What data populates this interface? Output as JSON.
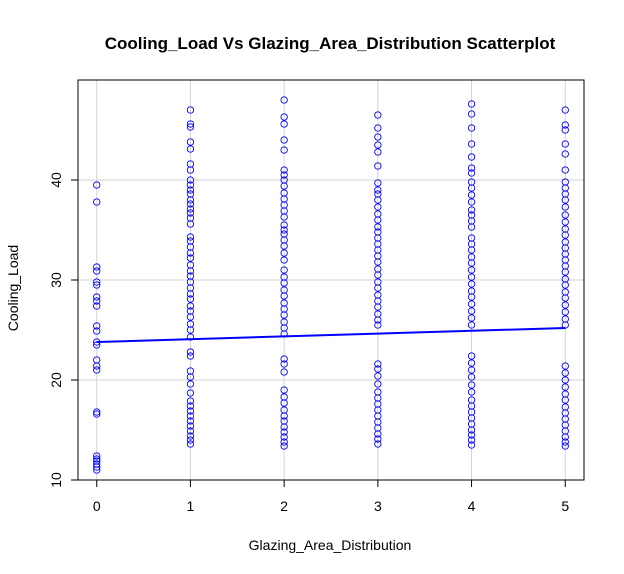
{
  "chart_data": {
    "type": "scatter",
    "title": "Cooling_Load Vs Glazing_Area_Distribution Scatterplot",
    "xlabel": "Glazing_Area_Distribution",
    "ylabel": "Cooling_Load",
    "xlim": [
      -0.2,
      5.2
    ],
    "ylim": [
      10.0,
      50.0
    ],
    "x_ticks": [
      0,
      1,
      2,
      3,
      4,
      5
    ],
    "y_ticks": [
      10,
      20,
      30,
      40
    ],
    "x_tick_labels": [
      "0",
      "1",
      "2",
      "3",
      "4",
      "5"
    ],
    "y_tick_labels": [
      "10",
      "20",
      "30",
      "40"
    ],
    "grid": true,
    "point_color": "#0000ff",
    "line_color": "#0000ff",
    "marker": "open-circle",
    "series": [
      {
        "points": [
          [
            0,
            39.5
          ],
          [
            0,
            37.8
          ],
          [
            0,
            31.3
          ],
          [
            0,
            30.9
          ],
          [
            0,
            29.8
          ],
          [
            0,
            29.5
          ],
          [
            0,
            28.3
          ],
          [
            0,
            27.9
          ],
          [
            0,
            27.4
          ],
          [
            0,
            25.4
          ],
          [
            0,
            24.9
          ],
          [
            0,
            23.8
          ],
          [
            0,
            23.5
          ],
          [
            0,
            22.0
          ],
          [
            0,
            21.4
          ],
          [
            0,
            21.0
          ],
          [
            0,
            16.8
          ],
          [
            0,
            16.6
          ],
          [
            0,
            12.4
          ],
          [
            0,
            12.1
          ],
          [
            0,
            11.9
          ],
          [
            0,
            11.6
          ],
          [
            0,
            11.3
          ],
          [
            0,
            11.0
          ],
          [
            1,
            47.0
          ],
          [
            1,
            45.6
          ],
          [
            1,
            45.3
          ],
          [
            1,
            43.8
          ],
          [
            1,
            43.1
          ],
          [
            1,
            41.6
          ],
          [
            1,
            41.0
          ],
          [
            1,
            40.0
          ],
          [
            1,
            39.5
          ],
          [
            1,
            39.0
          ],
          [
            1,
            38.6
          ],
          [
            1,
            38.0
          ],
          [
            1,
            37.6
          ],
          [
            1,
            37.1
          ],
          [
            1,
            36.7
          ],
          [
            1,
            36.2
          ],
          [
            1,
            35.6
          ],
          [
            1,
            34.3
          ],
          [
            1,
            33.9
          ],
          [
            1,
            33.3
          ],
          [
            1,
            32.7
          ],
          [
            1,
            32.2
          ],
          [
            1,
            31.5
          ],
          [
            1,
            30.9
          ],
          [
            1,
            30.4
          ],
          [
            1,
            29.8
          ],
          [
            1,
            29.2
          ],
          [
            1,
            28.6
          ],
          [
            1,
            28.1
          ],
          [
            1,
            27.4
          ],
          [
            1,
            26.9
          ],
          [
            1,
            26.3
          ],
          [
            1,
            25.6
          ],
          [
            1,
            25.0
          ],
          [
            1,
            24.3
          ],
          [
            1,
            22.8
          ],
          [
            1,
            22.4
          ],
          [
            1,
            20.9
          ],
          [
            1,
            20.3
          ],
          [
            1,
            19.6
          ],
          [
            1,
            18.7
          ],
          [
            1,
            17.9
          ],
          [
            1,
            17.4
          ],
          [
            1,
            16.9
          ],
          [
            1,
            16.4
          ],
          [
            1,
            15.9
          ],
          [
            1,
            15.4
          ],
          [
            1,
            14.9
          ],
          [
            1,
            14.4
          ],
          [
            1,
            14.0
          ],
          [
            1,
            13.6
          ],
          [
            2,
            48.0
          ],
          [
            2,
            46.3
          ],
          [
            2,
            45.6
          ],
          [
            2,
            44.0
          ],
          [
            2,
            43.0
          ],
          [
            2,
            41.0
          ],
          [
            2,
            40.5
          ],
          [
            2,
            40.0
          ],
          [
            2,
            39.4
          ],
          [
            2,
            38.7
          ],
          [
            2,
            38.1
          ],
          [
            2,
            37.5
          ],
          [
            2,
            36.9
          ],
          [
            2,
            36.3
          ],
          [
            2,
            35.5
          ],
          [
            2,
            35.0
          ],
          [
            2,
            34.6
          ],
          [
            2,
            34.0
          ],
          [
            2,
            33.4
          ],
          [
            2,
            32.7
          ],
          [
            2,
            32.0
          ],
          [
            2,
            31.0
          ],
          [
            2,
            30.3
          ],
          [
            2,
            29.7
          ],
          [
            2,
            29.0
          ],
          [
            2,
            28.4
          ],
          [
            2,
            27.7
          ],
          [
            2,
            27.1
          ],
          [
            2,
            26.5
          ],
          [
            2,
            25.8
          ],
          [
            2,
            25.2
          ],
          [
            2,
            24.6
          ],
          [
            2,
            22.1
          ],
          [
            2,
            21.6
          ],
          [
            2,
            20.8
          ],
          [
            2,
            19.0
          ],
          [
            2,
            18.3
          ],
          [
            2,
            17.7
          ],
          [
            2,
            17.0
          ],
          [
            2,
            16.4
          ],
          [
            2,
            15.9
          ],
          [
            2,
            15.3
          ],
          [
            2,
            14.8
          ],
          [
            2,
            14.3
          ],
          [
            2,
            13.8
          ],
          [
            2,
            13.4
          ],
          [
            3,
            46.5
          ],
          [
            3,
            45.2
          ],
          [
            3,
            44.3
          ],
          [
            3,
            43.5
          ],
          [
            3,
            42.8
          ],
          [
            3,
            41.4
          ],
          [
            3,
            39.7
          ],
          [
            3,
            39.0
          ],
          [
            3,
            38.6
          ],
          [
            3,
            38.0
          ],
          [
            3,
            37.3
          ],
          [
            3,
            36.6
          ],
          [
            3,
            36.0
          ],
          [
            3,
            35.3
          ],
          [
            3,
            34.8
          ],
          [
            3,
            34.2
          ],
          [
            3,
            33.6
          ],
          [
            3,
            33.0
          ],
          [
            3,
            32.4
          ],
          [
            3,
            31.8
          ],
          [
            3,
            31.1
          ],
          [
            3,
            30.5
          ],
          [
            3,
            29.8
          ],
          [
            3,
            29.2
          ],
          [
            3,
            28.5
          ],
          [
            3,
            27.9
          ],
          [
            3,
            27.3
          ],
          [
            3,
            26.6
          ],
          [
            3,
            26.0
          ],
          [
            3,
            25.5
          ],
          [
            3,
            21.6
          ],
          [
            3,
            21.1
          ],
          [
            3,
            20.4
          ],
          [
            3,
            19.6
          ],
          [
            3,
            18.8
          ],
          [
            3,
            18.2
          ],
          [
            3,
            17.6
          ],
          [
            3,
            17.0
          ],
          [
            3,
            16.4
          ],
          [
            3,
            15.8
          ],
          [
            3,
            15.2
          ],
          [
            3,
            14.6
          ],
          [
            3,
            14.1
          ],
          [
            3,
            13.6
          ],
          [
            4,
            47.6
          ],
          [
            4,
            46.6
          ],
          [
            4,
            45.2
          ],
          [
            4,
            43.6
          ],
          [
            4,
            42.3
          ],
          [
            4,
            41.2
          ],
          [
            4,
            40.7
          ],
          [
            4,
            39.8
          ],
          [
            4,
            39.2
          ],
          [
            4,
            38.5
          ],
          [
            4,
            37.8
          ],
          [
            4,
            37.0
          ],
          [
            4,
            36.5
          ],
          [
            4,
            35.9
          ],
          [
            4,
            35.3
          ],
          [
            4,
            34.2
          ],
          [
            4,
            33.6
          ],
          [
            4,
            33.0
          ],
          [
            4,
            32.3
          ],
          [
            4,
            31.7
          ],
          [
            4,
            31.0
          ],
          [
            4,
            30.3
          ],
          [
            4,
            29.6
          ],
          [
            4,
            28.9
          ],
          [
            4,
            28.3
          ],
          [
            4,
            27.6
          ],
          [
            4,
            26.9
          ],
          [
            4,
            26.2
          ],
          [
            4,
            25.5
          ],
          [
            4,
            22.4
          ],
          [
            4,
            21.7
          ],
          [
            4,
            21.0
          ],
          [
            4,
            20.3
          ],
          [
            4,
            19.5
          ],
          [
            4,
            18.8
          ],
          [
            4,
            18.0
          ],
          [
            4,
            17.4
          ],
          [
            4,
            16.8
          ],
          [
            4,
            16.2
          ],
          [
            4,
            15.6
          ],
          [
            4,
            15.0
          ],
          [
            4,
            14.5
          ],
          [
            4,
            14.0
          ],
          [
            4,
            13.5
          ],
          [
            5,
            47.0
          ],
          [
            5,
            45.5
          ],
          [
            5,
            45.0
          ],
          [
            5,
            43.6
          ],
          [
            5,
            42.6
          ],
          [
            5,
            41.0
          ],
          [
            5,
            39.8
          ],
          [
            5,
            39.2
          ],
          [
            5,
            38.6
          ],
          [
            5,
            38.0
          ],
          [
            5,
            37.3
          ],
          [
            5,
            36.5
          ],
          [
            5,
            35.8
          ],
          [
            5,
            35.1
          ],
          [
            5,
            34.5
          ],
          [
            5,
            33.8
          ],
          [
            5,
            33.2
          ],
          [
            5,
            32.6
          ],
          [
            5,
            32.0
          ],
          [
            5,
            31.4
          ],
          [
            5,
            30.8
          ],
          [
            5,
            30.1
          ],
          [
            5,
            29.5
          ],
          [
            5,
            28.8
          ],
          [
            5,
            28.2
          ],
          [
            5,
            27.5
          ],
          [
            5,
            26.8
          ],
          [
            5,
            26.1
          ],
          [
            5,
            25.5
          ],
          [
            5,
            21.4
          ],
          [
            5,
            20.7
          ],
          [
            5,
            20.0
          ],
          [
            5,
            19.3
          ],
          [
            5,
            18.6
          ],
          [
            5,
            18.0
          ],
          [
            5,
            17.3
          ],
          [
            5,
            16.7
          ],
          [
            5,
            16.1
          ],
          [
            5,
            15.5
          ],
          [
            5,
            14.9
          ],
          [
            5,
            14.3
          ],
          [
            5,
            13.8
          ],
          [
            5,
            13.4
          ]
        ]
      }
    ],
    "trend_line": {
      "x": [
        0,
        5
      ],
      "y": [
        23.8,
        25.2
      ]
    }
  }
}
